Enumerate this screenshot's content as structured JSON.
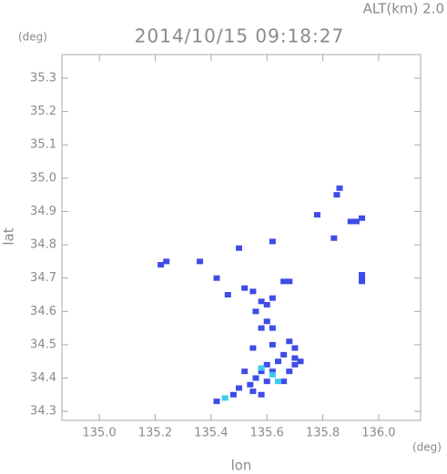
{
  "chart_data": {
    "type": "scatter",
    "title": "2014/10/15 09:18:27",
    "annotation": "ALT(km) 2.0",
    "x_label": "lon",
    "y_label": "lat",
    "x_unit": "(deg)",
    "y_unit": "(deg)",
    "xlim": [
      134.866,
      136.15
    ],
    "ylim": [
      34.273,
      35.371
    ],
    "xticks": [
      {
        "value": 135.0,
        "label": "135.0"
      },
      135.2,
      135.4,
      135.6,
      135.8,
      {
        "value": 136.0,
        "label": "136.0"
      }
    ],
    "yticks": [
      34.3,
      34.4,
      34.5,
      34.6,
      34.7,
      34.8,
      34.9,
      {
        "value": 35.0,
        "label": "35.0"
      },
      35.1,
      35.2,
      35.3
    ],
    "series": [
      {
        "color": "#3f4ce6",
        "x": [
          135.86,
          135.85,
          135.78,
          135.92,
          135.94,
          135.9,
          135.84,
          135.94,
          135.94,
          135.94,
          135.62,
          135.5,
          135.22,
          135.24,
          135.36,
          135.42,
          135.52,
          135.55,
          135.58,
          135.62,
          135.66,
          135.68,
          135.6,
          135.56,
          135.46,
          135.6,
          135.62,
          135.58,
          135.62,
          135.55,
          135.68,
          135.7,
          135.66,
          135.7,
          135.72,
          135.6,
          135.64,
          135.52,
          135.58,
          135.62,
          135.68,
          135.7,
          135.56,
          135.6,
          135.66,
          135.54,
          135.5,
          135.55,
          135.48,
          135.58,
          135.42
        ],
        "y": [
          34.97,
          34.95,
          34.89,
          34.87,
          34.88,
          34.87,
          34.82,
          34.71,
          34.7,
          34.69,
          34.81,
          34.79,
          34.74,
          34.75,
          34.75,
          34.7,
          34.67,
          34.66,
          34.63,
          34.64,
          34.69,
          34.69,
          34.62,
          34.6,
          34.65,
          34.57,
          34.55,
          34.55,
          34.5,
          34.49,
          34.51,
          34.49,
          34.47,
          34.46,
          34.45,
          34.44,
          34.45,
          34.42,
          34.42,
          34.42,
          34.42,
          34.44,
          34.4,
          34.39,
          34.39,
          34.38,
          34.37,
          34.36,
          34.35,
          34.35,
          34.33
        ]
      },
      {
        "color": "#3ccbf0",
        "x": [
          135.62,
          135.58,
          135.45,
          135.64
        ],
        "y": [
          34.41,
          34.43,
          34.34,
          34.39
        ]
      }
    ]
  }
}
